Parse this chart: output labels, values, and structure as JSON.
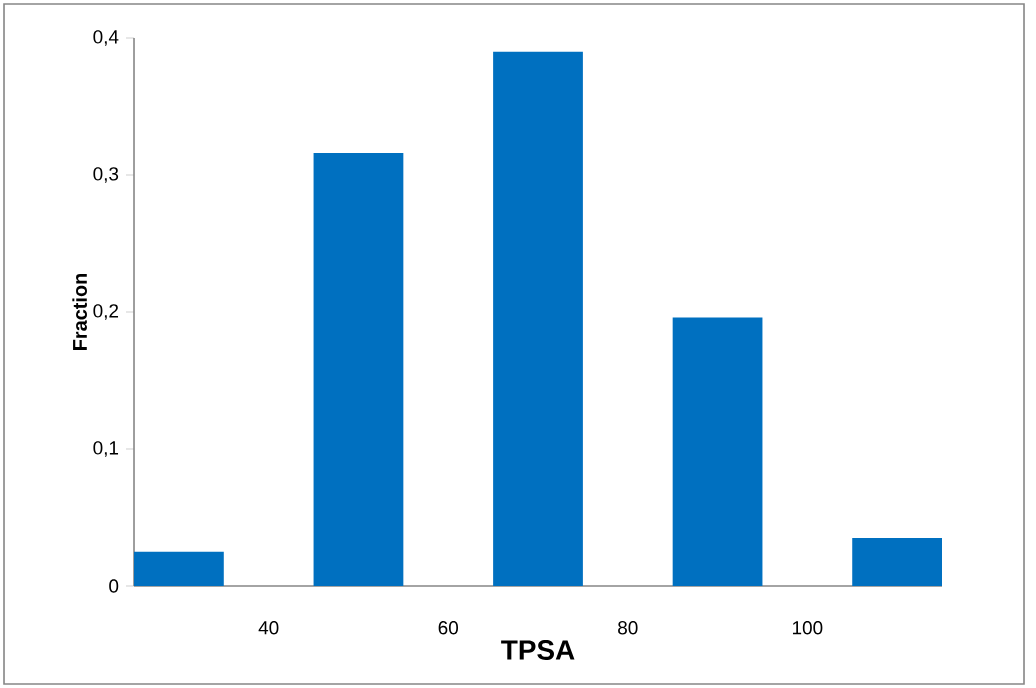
{
  "chart_data": {
    "type": "bar",
    "xlabel": "TPSA",
    "ylabel": "Fraction",
    "categories": [
      null,
      "40",
      null,
      "60",
      null,
      "80",
      null,
      "100",
      null
    ],
    "values": [
      0.025,
      null,
      0.316,
      null,
      0.39,
      null,
      0.196,
      null,
      0.035
    ],
    "color": "#0070c0",
    "ylim": [
      0,
      0.4
    ],
    "yticks": [
      {
        "value": 0,
        "label": "0"
      },
      {
        "value": 0.1,
        "label": "0,1"
      },
      {
        "value": 0.2,
        "label": "0,2"
      },
      {
        "value": 0.3,
        "label": "0,3"
      },
      {
        "value": 0.4,
        "label": "0,4"
      }
    ],
    "grid": false
  }
}
